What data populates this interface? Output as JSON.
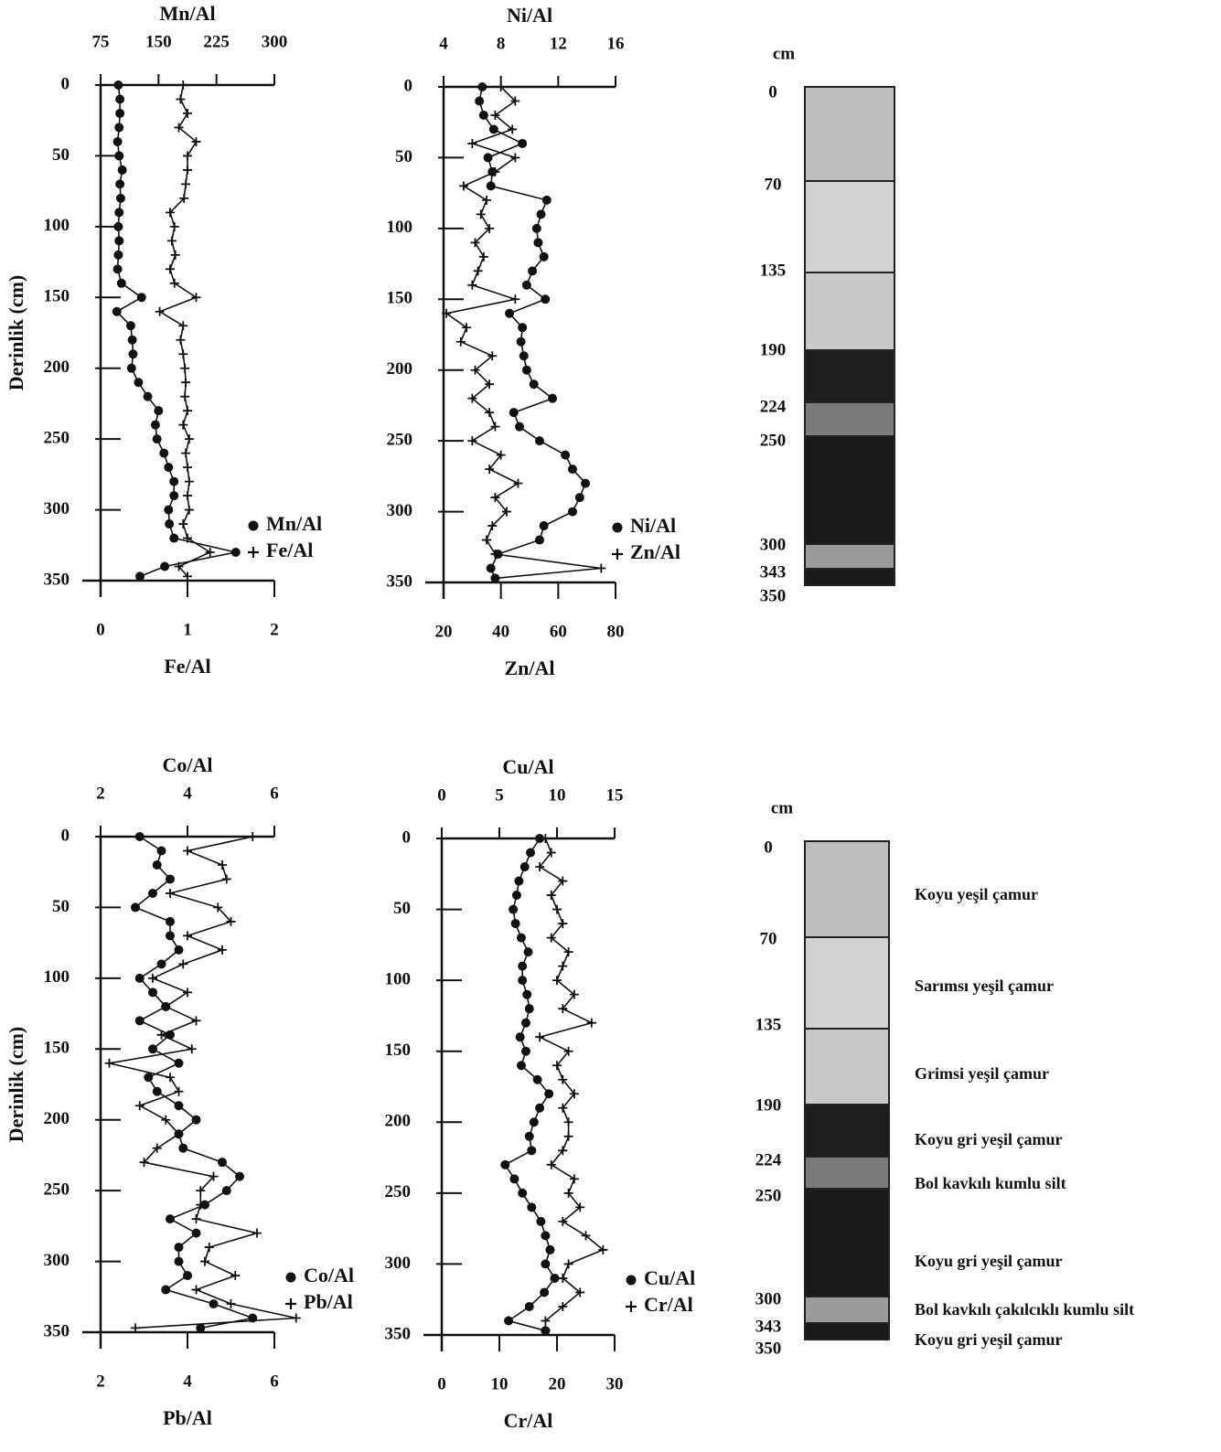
{
  "chart_data": [
    {
      "type": "line",
      "ylabel": "Derinlik (cm)",
      "y": [
        0,
        10,
        20,
        30,
        40,
        50,
        60,
        70,
        80,
        90,
        100,
        110,
        120,
        130,
        140,
        150,
        160,
        170,
        180,
        190,
        200,
        210,
        220,
        230,
        240,
        250,
        260,
        270,
        280,
        290,
        300,
        310,
        320,
        330,
        340,
        347
      ],
      "ylim": [
        0,
        350
      ],
      "yticks": [
        0,
        50,
        100,
        150,
        200,
        250,
        300,
        350
      ],
      "xlabel": "Fe/Al",
      "xlim": [
        0,
        2
      ],
      "xticks": [
        0,
        1,
        2
      ],
      "x2label": "Mn/Al",
      "x2lim": [
        75,
        300
      ],
      "x2ticks": [
        75,
        150,
        225,
        300
      ],
      "series": [
        {
          "name": "Mn/Al",
          "marker": "circle",
          "color": "#111111",
          "axis": "x2",
          "values": [
            98,
            100,
            100,
            99,
            97,
            99,
            103,
            100,
            101,
            99,
            98,
            99,
            98,
            97,
            102,
            128,
            96,
            114,
            116,
            117,
            115,
            124,
            136,
            150,
            146,
            148,
            157,
            163,
            170,
            170,
            163,
            164,
            170,
            250,
            158,
            126
          ]
        },
        {
          "name": "Fe/Al",
          "marker": "plus",
          "color": "#111111",
          "values": [
            0.95,
            0.92,
            1.0,
            0.9,
            1.1,
            1.0,
            1.0,
            0.98,
            0.96,
            0.8,
            0.85,
            0.82,
            0.86,
            0.8,
            0.85,
            1.1,
            0.68,
            0.95,
            0.92,
            0.95,
            0.97,
            0.98,
            0.97,
            1.0,
            0.95,
            1.02,
            0.98,
            1.0,
            1.02,
            1.0,
            1.02,
            0.95,
            1.0,
            1.26,
            0.9,
            1.0
          ]
        }
      ]
    },
    {
      "type": "line",
      "y": [
        0,
        10,
        20,
        30,
        40,
        50,
        60,
        70,
        80,
        90,
        100,
        110,
        120,
        130,
        140,
        150,
        160,
        170,
        180,
        190,
        200,
        210,
        220,
        230,
        240,
        250,
        260,
        270,
        280,
        290,
        300,
        310,
        320,
        330,
        340,
        347
      ],
      "ylim": [
        0,
        350
      ],
      "yticks": [
        0,
        50,
        100,
        150,
        200,
        250,
        300,
        350
      ],
      "xlabel": "Zn/Al",
      "xlim": [
        20,
        80
      ],
      "xticks": [
        20,
        40,
        60,
        80
      ],
      "x2label": "Ni/Al",
      "x2lim": [
        4,
        16
      ],
      "x2ticks": [
        4,
        8,
        12,
        16
      ],
      "series": [
        {
          "name": "Ni/Al",
          "marker": "circle",
          "color": "#111111",
          "axis": "x2",
          "values": [
            6.7,
            6.5,
            6.8,
            7.5,
            9.5,
            7.1,
            7.4,
            7.3,
            11.2,
            10.8,
            10.5,
            10.6,
            11.0,
            10.2,
            9.8,
            11.1,
            8.6,
            9.5,
            9.4,
            9.6,
            9.8,
            10.3,
            11.6,
            8.9,
            9.3,
            10.7,
            12.5,
            13.0,
            13.9,
            13.5,
            13.0,
            11.0,
            10.7,
            7.8,
            7.3,
            7.6
          ]
        },
        {
          "name": "Zn/Al",
          "marker": "plus",
          "color": "#111111",
          "values": [
            40,
            45,
            38,
            44,
            30,
            45,
            38,
            27,
            35,
            33,
            36,
            31,
            34,
            32,
            30,
            45,
            21,
            28,
            26,
            37,
            31,
            36,
            30,
            36,
            38,
            30,
            40,
            36,
            46,
            38,
            42,
            37,
            35,
            38,
            75,
            38
          ]
        }
      ]
    },
    {
      "type": "line",
      "ylabel": "Derinlik (cm)",
      "y": [
        0,
        10,
        20,
        30,
        40,
        50,
        60,
        70,
        80,
        90,
        100,
        110,
        120,
        130,
        140,
        150,
        160,
        170,
        180,
        190,
        200,
        210,
        220,
        230,
        240,
        250,
        260,
        270,
        280,
        290,
        300,
        310,
        320,
        330,
        340,
        347
      ],
      "ylim": [
        0,
        350
      ],
      "yticks": [
        0,
        50,
        100,
        150,
        200,
        250,
        300,
        350
      ],
      "xlabel": "Pb/Al",
      "xlim": [
        2,
        6
      ],
      "xticks": [
        2,
        4,
        6
      ],
      "x2label": "Co/Al",
      "x2lim": [
        2,
        6
      ],
      "x2ticks": [
        2,
        4,
        6
      ],
      "series": [
        {
          "name": "Co/Al",
          "marker": "circle",
          "color": "#111111",
          "axis": "x2",
          "values": [
            2.9,
            3.4,
            3.3,
            3.6,
            3.2,
            2.8,
            3.6,
            3.6,
            3.8,
            3.4,
            2.9,
            3.2,
            3.5,
            2.9,
            3.6,
            3.2,
            3.8,
            3.1,
            3.3,
            3.8,
            4.2,
            3.8,
            3.9,
            4.8,
            5.2,
            4.9,
            4.4,
            3.6,
            4.2,
            3.8,
            3.8,
            4.0,
            3.5,
            4.6,
            5.5,
            4.3
          ]
        },
        {
          "name": "Pb/Al",
          "marker": "plus",
          "color": "#111111",
          "values": [
            5.5,
            4.0,
            4.8,
            4.9,
            3.6,
            4.7,
            5.0,
            4.0,
            4.8,
            3.9,
            3.2,
            4.0,
            3.5,
            4.2,
            3.4,
            4.1,
            2.2,
            3.6,
            3.8,
            2.9,
            3.5,
            3.8,
            3.3,
            3.0,
            4.6,
            4.3,
            4.3,
            4.2,
            5.6,
            4.5,
            4.4,
            5.1,
            4.2,
            5.0,
            6.5,
            2.8
          ]
        }
      ]
    },
    {
      "type": "line",
      "y": [
        0,
        10,
        20,
        30,
        40,
        50,
        60,
        70,
        80,
        90,
        100,
        110,
        120,
        130,
        140,
        150,
        160,
        170,
        180,
        190,
        200,
        210,
        220,
        230,
        240,
        250,
        260,
        270,
        280,
        290,
        300,
        310,
        320,
        330,
        340,
        347
      ],
      "ylim": [
        0,
        350
      ],
      "yticks": [
        0,
        50,
        100,
        150,
        200,
        250,
        300,
        350
      ],
      "xlabel": "Cr/Al",
      "xlim": [
        0,
        30
      ],
      "xticks": [
        0,
        10,
        20,
        30
      ],
      "x2label": "Cu/Al",
      "x2lim": [
        0,
        15
      ],
      "x2ticks": [
        0,
        5,
        10,
        15
      ],
      "series": [
        {
          "name": "Cu/Al",
          "marker": "circle",
          "color": "#111111",
          "axis": "x2",
          "values": [
            8.5,
            7.7,
            7.2,
            6.7,
            6.5,
            6.2,
            6.4,
            6.9,
            7.5,
            7.0,
            7.0,
            7.4,
            7.6,
            7.3,
            6.8,
            7.3,
            6.9,
            8.3,
            9.3,
            8.5,
            8.0,
            7.6,
            7.8,
            5.5,
            6.3,
            7.0,
            7.8,
            8.6,
            9.0,
            9.4,
            9.0,
            9.8,
            8.9,
            7.6,
            5.8,
            9.0
          ]
        },
        {
          "name": "Cr/Al",
          "marker": "plus",
          "color": "#111111",
          "values": [
            18,
            19,
            17,
            21,
            19,
            20,
            21,
            19,
            22,
            21,
            20,
            23,
            21,
            26,
            17,
            22,
            20,
            21,
            23,
            21,
            22,
            22,
            21,
            19,
            23,
            22,
            24,
            21,
            25,
            28,
            22,
            21,
            24,
            21,
            18,
            18
          ]
        }
      ]
    }
  ],
  "lithology": [
    {
      "unit": "cm",
      "depths": [
        0,
        70,
        135,
        190,
        224,
        250,
        300,
        343,
        350
      ],
      "layer_colors": [
        "#bdbdbd",
        "#d2d2d2",
        "#c8c8c8",
        "#1e1e1e",
        "#7a7a7a",
        "#1a1a1a",
        "#9a9a9a",
        "#1a1a1a"
      ]
    },
    {
      "unit": "cm",
      "depths": [
        0,
        70,
        135,
        190,
        224,
        250,
        300,
        343,
        350
      ],
      "layer_colors": [
        "#bdbdbd",
        "#d2d2d2",
        "#c8c8c8",
        "#1e1e1e",
        "#7a7a7a",
        "#1a1a1a",
        "#9a9a9a",
        "#1a1a1a"
      ],
      "descriptions": [
        "Koyu yeşil çamur",
        "Sarımsı yeşil çamur",
        "Grimsi yeşil çamur",
        "Koyu gri yeşil çamur",
        "Bol kavkılı kumlu silt",
        "Koyu gri yeşil çamur",
        "Bol kavkılı çakılcıklı kumlu silt",
        "Koyu gri yeşil çamur"
      ]
    }
  ]
}
